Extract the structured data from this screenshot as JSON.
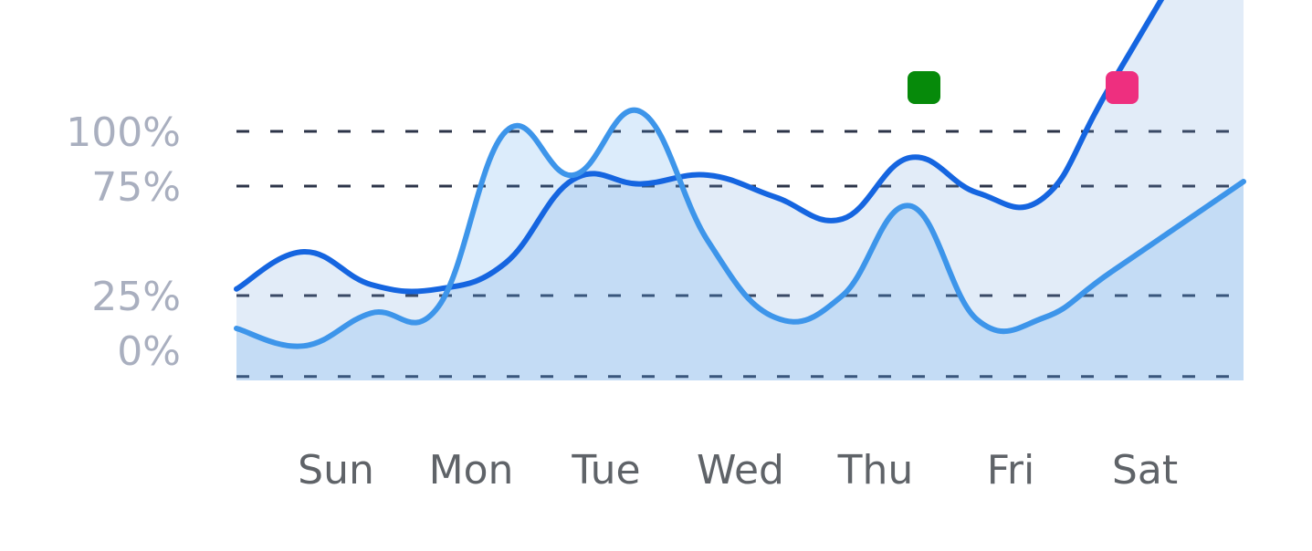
{
  "chart_data": {
    "type": "area",
    "x": [
      0,
      0.5,
      1,
      1.5,
      2,
      2.5,
      3,
      3.5,
      4,
      4.5,
      5,
      5.5,
      6,
      6.5,
      7
    ],
    "categories": [
      "Sun",
      "Mon",
      "Tue",
      "Wed",
      "Thu",
      "Fri",
      "Sat"
    ],
    "series": [
      {
        "color": "#1565e0",
        "values": [
          28,
          45,
          30,
          28,
          40,
          78,
          76,
          80,
          70,
          60,
          88,
          72,
          70,
          122,
          null
        ]
      },
      {
        "color": "#3d95ea",
        "values": [
          10,
          2,
          17,
          20,
          100,
          80,
          109,
          50,
          15,
          25,
          66,
          14,
          15,
          36,
          null
        ]
      }
    ],
    "y_ticks": [
      {
        "value": 0,
        "label": "0%"
      },
      {
        "value": 25,
        "label": "25%"
      },
      {
        "value": 75,
        "label": "75%"
      },
      {
        "value": 100,
        "label": "100%"
      }
    ],
    "grid_values": [
      -12,
      25,
      75,
      100
    ],
    "legend": [
      {
        "color": "#068a0a"
      },
      {
        "color": "#ee2f7f"
      }
    ],
    "legend_position": "top-right",
    "grid": true
  }
}
